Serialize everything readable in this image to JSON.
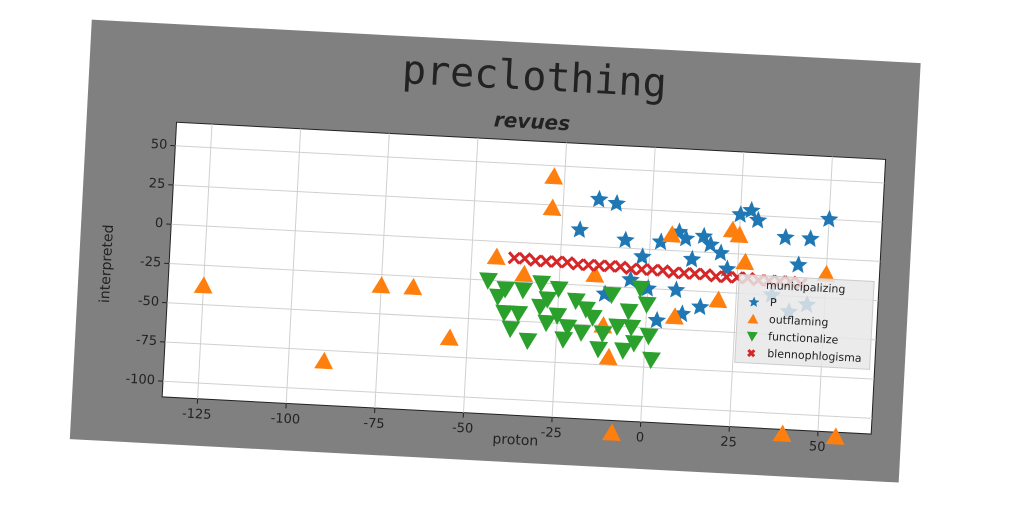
{
  "chart_data": {
    "type": "scatter",
    "title": "preclothing",
    "subtitle": "revues",
    "x_label": "proton",
    "y_label": "interpreted",
    "xlim": [
      -135,
      65
    ],
    "ylim": [
      -110,
      65
    ],
    "xticks": [
      -125,
      -100,
      -75,
      -50,
      -25,
      0,
      25,
      50
    ],
    "yticks": [
      -100,
      -75,
      -50,
      -25,
      0,
      25,
      50
    ],
    "grid": true,
    "legend_title": "municipalizing",
    "legend_loc": "center right",
    "series": [
      {
        "name": "P",
        "color": "#1f77b4",
        "marker": "star",
        "x": [
          -15,
          -10,
          -20,
          -7,
          -2,
          3,
          8,
          10,
          12,
          15,
          17,
          20,
          22,
          25,
          28,
          30,
          38,
          42,
          45,
          50,
          -5,
          0,
          8,
          15,
          3,
          10,
          -12,
          35,
          40,
          45
        ],
        "y": [
          30,
          28,
          10,
          5,
          -5,
          5,
          12,
          8,
          -5,
          10,
          5,
          0,
          -10,
          25,
          28,
          22,
          12,
          -5,
          12,
          25,
          -20,
          -25,
          -25,
          -35,
          -45,
          -40,
          -30,
          -25,
          -35,
          -30
        ]
      },
      {
        "name": "outflaming",
        "color": "#ff7f0e",
        "marker": "triangle-up",
        "x": [
          -125,
          -90,
          -75,
          -66,
          -55,
          -43,
          -28,
          -28,
          -10,
          -12,
          -8,
          -15,
          6,
          8,
          20,
          23,
          25,
          27,
          50,
          40,
          55,
          -35
        ],
        "y": [
          -38,
          -82,
          -32,
          -32,
          -63,
          -10,
          43,
          23,
          -70,
          -50,
          -118,
          -18,
          10,
          -42,
          -30,
          15,
          12,
          -5,
          -10,
          -113,
          -113,
          -20
        ]
      },
      {
        "name": "functionalize",
        "color": "#2ca02c",
        "marker": "triangle-down",
        "x": [
          -45,
          -42,
          -40,
          -38,
          -35,
          -33,
          -30,
          -28,
          -25,
          -23,
          -20,
          -18,
          -15,
          -13,
          -10,
          -8,
          -5,
          -3,
          0,
          2,
          -2,
          -6,
          -25,
          -30,
          -40,
          -36,
          -17,
          -12,
          -4,
          1,
          -22,
          -28
        ],
        "y": [
          -25,
          -35,
          -45,
          -55,
          -30,
          -62,
          -40,
          -50,
          -28,
          -60,
          -35,
          -55,
          -45,
          -65,
          -30,
          -50,
          -40,
          -60,
          -35,
          -70,
          -25,
          -65,
          -45,
          -25,
          -30,
          -45,
          -40,
          -55,
          -50,
          -55,
          -52,
          -35
        ]
      },
      {
        "name": "blennophlogisma",
        "color": "#d62728",
        "marker": "x",
        "x": [
          -38,
          -35,
          -32,
          -29,
          -26,
          -23,
          -20,
          -17,
          -14,
          -11,
          -8,
          -5,
          -2,
          1,
          4,
          7,
          10,
          13,
          16,
          19,
          22,
          25,
          28,
          31,
          34,
          37,
          40,
          43
        ],
        "y": [
          -10,
          -10,
          -11,
          -11,
          -11,
          -11,
          -12,
          -12,
          -12,
          -12,
          -12,
          -13,
          -13,
          -13,
          -13,
          -14,
          -14,
          -14,
          -14,
          -15,
          -15,
          -15,
          -15,
          -16,
          -16,
          -16,
          -16,
          -17
        ]
      }
    ]
  }
}
